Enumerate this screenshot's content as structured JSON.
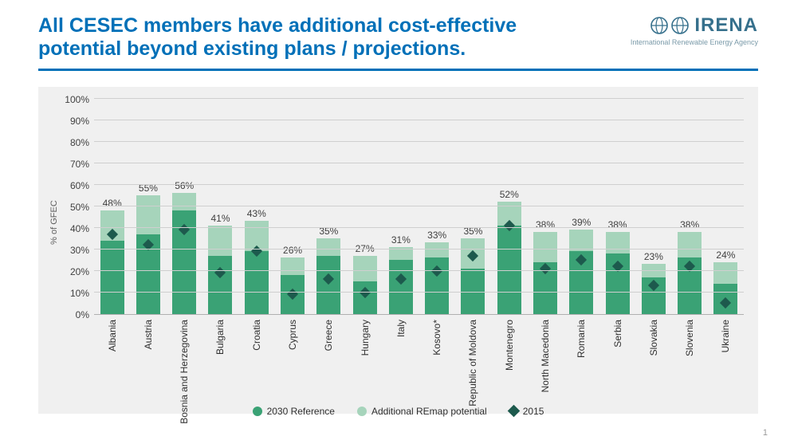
{
  "header": {
    "title": "All CESEC members have additional cost-effective potential beyond existing plans / projections.",
    "title_color": "#0070b8",
    "rule_color": "#0070b8",
    "logo": {
      "text": "IRENA",
      "subtitle": "International Renewable Energy Agency",
      "color": "#36708c",
      "sub_color": "#7a9aa9"
    }
  },
  "chart": {
    "type": "stacked_bar_with_marker",
    "background_color": "#f0f0f0",
    "y_axis": {
      "title": "% of GFEC",
      "min": 0,
      "max": 100,
      "step": 10,
      "title_color": "#606060",
      "grid_color": "#cfcfcf"
    },
    "series": {
      "reference": {
        "label": "2030 Reference",
        "color": "#3aa275"
      },
      "additional": {
        "label": "Additional REmap potential",
        "color": "#a6d4bb"
      },
      "marker": {
        "label": "2015",
        "color": "#1d5a4d",
        "shape": "diamond"
      }
    },
    "data": [
      {
        "country": "Albania",
        "reference": 34,
        "total": 48,
        "marker_2015": 37
      },
      {
        "country": "Austria",
        "reference": 37,
        "total": 55,
        "marker_2015": 32
      },
      {
        "country": "Bosnia and Herzegovina",
        "reference": 48,
        "total": 56,
        "marker_2015": 39
      },
      {
        "country": "Bulgaria",
        "reference": 27,
        "total": 41,
        "marker_2015": 19
      },
      {
        "country": "Croatia",
        "reference": 29,
        "total": 43,
        "marker_2015": 29
      },
      {
        "country": "Cyprus",
        "reference": 18,
        "total": 26,
        "marker_2015": 9
      },
      {
        "country": "Greece",
        "reference": 27,
        "total": 35,
        "marker_2015": 16
      },
      {
        "country": "Hungary",
        "reference": 15,
        "total": 27,
        "marker_2015": 10
      },
      {
        "country": "Italy",
        "reference": 25,
        "total": 31,
        "marker_2015": 16
      },
      {
        "country": "Kosovo*",
        "reference": 26,
        "total": 33,
        "marker_2015": 20
      },
      {
        "country": "Republic of Moldova",
        "reference": 21,
        "total": 35,
        "marker_2015": 27
      },
      {
        "country": "Montenegro",
        "reference": 41,
        "total": 52,
        "marker_2015": 41
      },
      {
        "country": "North Macedonia",
        "reference": 24,
        "total": 38,
        "marker_2015": 21
      },
      {
        "country": "Romania",
        "reference": 29,
        "total": 39,
        "marker_2015": 25
      },
      {
        "country": "Serbia",
        "reference": 28,
        "total": 38,
        "marker_2015": 22
      },
      {
        "country": "Slovakia",
        "reference": 17,
        "total": 23,
        "marker_2015": 13
      },
      {
        "country": "Slovenia",
        "reference": 26,
        "total": 38,
        "marker_2015": 22
      },
      {
        "country": "Ukraine",
        "reference": 14,
        "total": 24,
        "marker_2015": 5
      }
    ],
    "label_fontsize": 12,
    "label_color": "#404040"
  },
  "page_number": "1"
}
